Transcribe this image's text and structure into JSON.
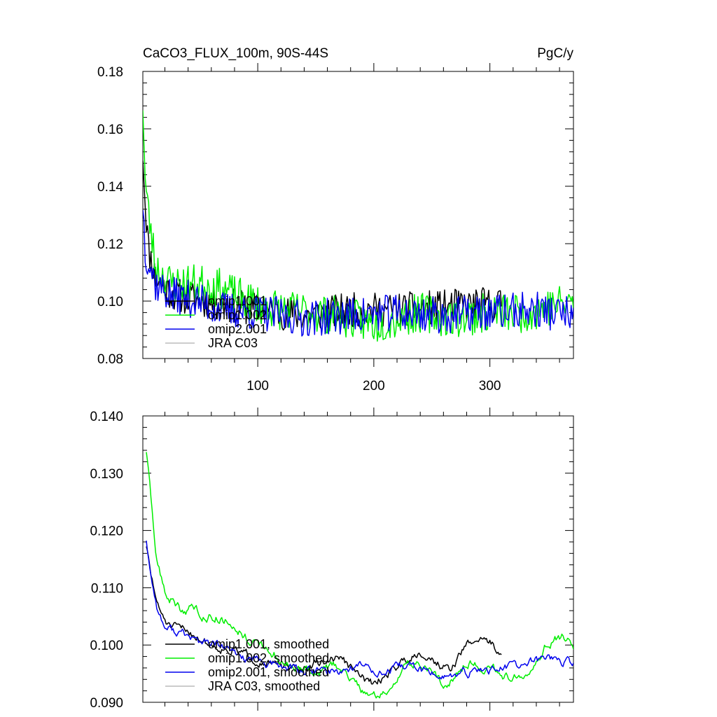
{
  "chart_data": [
    {
      "type": "line",
      "title": "CaCO3_FLUX_100m, 90S-44S",
      "units": "PgC/y",
      "ylim": [
        0.08,
        0.18
      ],
      "xlim": [
        1,
        372
      ],
      "y_ticks": [
        "0.08",
        "0.10",
        "0.12",
        "0.14",
        "0.16",
        "0.18"
      ],
      "x_ticks": [
        "100",
        "200",
        "300"
      ],
      "legend_position": "lower-left",
      "grid": false,
      "series": [
        {
          "name": "omip1.001",
          "color": "#000000",
          "end": 310,
          "anchors": [
            [
              1,
              0.152
            ],
            [
              3,
              0.135
            ],
            [
              6,
              0.118
            ],
            [
              12,
              0.108
            ],
            [
              25,
              0.103
            ],
            [
              40,
              0.101
            ],
            [
              70,
              0.099
            ],
            [
              100,
              0.097
            ],
            [
              140,
              0.095
            ],
            [
              180,
              0.097
            ],
            [
              220,
              0.097
            ],
            [
              260,
              0.098
            ],
            [
              300,
              0.099
            ],
            [
              310,
              0.099
            ]
          ],
          "noise": 0.006,
          "seed": 11
        },
        {
          "name": "omip1.002",
          "color": "#00ee00",
          "end": 372,
          "anchors": [
            [
              1,
              0.17
            ],
            [
              3,
              0.142
            ],
            [
              6,
              0.13
            ],
            [
              12,
              0.112
            ],
            [
              25,
              0.106
            ],
            [
              40,
              0.106
            ],
            [
              55,
              0.106
            ],
            [
              70,
              0.104
            ],
            [
              90,
              0.1
            ],
            [
              120,
              0.097
            ],
            [
              150,
              0.096
            ],
            [
              180,
              0.094
            ],
            [
              200,
              0.092
            ],
            [
              240,
              0.096
            ],
            [
              270,
              0.094
            ],
            [
              300,
              0.096
            ],
            [
              330,
              0.096
            ],
            [
              372,
              0.1
            ]
          ],
          "noise": 0.007,
          "seed": 23
        },
        {
          "name": "omip2.001",
          "color": "#0000ee",
          "end": 372,
          "anchors": [
            [
              1,
              0.135
            ],
            [
              3,
              0.118
            ],
            [
              6,
              0.114
            ],
            [
              12,
              0.106
            ],
            [
              25,
              0.102
            ],
            [
              40,
              0.101
            ],
            [
              70,
              0.097
            ],
            [
              100,
              0.096
            ],
            [
              140,
              0.094
            ],
            [
              180,
              0.095
            ],
            [
              220,
              0.096
            ],
            [
              260,
              0.095
            ],
            [
              300,
              0.096
            ],
            [
              340,
              0.097
            ],
            [
              372,
              0.095
            ]
          ],
          "noise": 0.0065,
          "seed": 37
        },
        {
          "name": "JRA C03",
          "color": "#bbbbbb",
          "end": 0,
          "anchors": [],
          "noise": 0,
          "seed": 0
        }
      ]
    },
    {
      "type": "line",
      "title": "",
      "ylim": [
        0.09,
        0.14
      ],
      "xlim": [
        1,
        372
      ],
      "y_ticks": [
        "0.090",
        "0.100",
        "0.110",
        "0.120",
        "0.130",
        "0.140"
      ],
      "x_ticks": [],
      "legend_position": "lower-left",
      "grid": false,
      "series": [
        {
          "name": "omip1.001, smoothed",
          "color": "#000000",
          "end": 310,
          "anchors": [
            [
              4,
              0.1175
            ],
            [
              8,
              0.112
            ],
            [
              15,
              0.106
            ],
            [
              25,
              0.103
            ],
            [
              40,
              0.1025
            ],
            [
              60,
              0.1
            ],
            [
              80,
              0.099
            ],
            [
              100,
              0.0975
            ],
            [
              130,
              0.0955
            ],
            [
              150,
              0.0965
            ],
            [
              170,
              0.098
            ],
            [
              185,
              0.095
            ],
            [
              200,
              0.093
            ],
            [
              220,
              0.0965
            ],
            [
              240,
              0.099
            ],
            [
              250,
              0.0975
            ],
            [
              265,
              0.0955
            ],
            [
              280,
              0.1
            ],
            [
              295,
              0.1015
            ],
            [
              310,
              0.0985
            ]
          ],
          "noise": 0.0012,
          "seed": 51
        },
        {
          "name": "omip1.002, smoothed",
          "color": "#00ee00",
          "end": 376,
          "anchors": [
            [
              4,
              0.134
            ],
            [
              8,
              0.125
            ],
            [
              12,
              0.116
            ],
            [
              20,
              0.109
            ],
            [
              35,
              0.106
            ],
            [
              45,
              0.1065
            ],
            [
              55,
              0.105
            ],
            [
              65,
              0.105
            ],
            [
              80,
              0.1035
            ],
            [
              95,
              0.1005
            ],
            [
              110,
              0.099
            ],
            [
              130,
              0.096
            ],
            [
              150,
              0.095
            ],
            [
              170,
              0.0965
            ],
            [
              185,
              0.093
            ],
            [
              200,
              0.091
            ],
            [
              210,
              0.0915
            ],
            [
              225,
              0.096
            ],
            [
              240,
              0.097
            ],
            [
              260,
              0.093
            ],
            [
              280,
              0.097
            ],
            [
              300,
              0.096
            ],
            [
              320,
              0.094
            ],
            [
              335,
              0.0965
            ],
            [
              350,
              0.1005
            ],
            [
              365,
              0.1015
            ],
            [
              376,
              0.098
            ]
          ],
          "noise": 0.0013,
          "seed": 63
        },
        {
          "name": "omip2.001, smoothed",
          "color": "#0000ee",
          "end": 376,
          "anchors": [
            [
              4,
              0.1185
            ],
            [
              8,
              0.112
            ],
            [
              14,
              0.106
            ],
            [
              20,
              0.103
            ],
            [
              35,
              0.102
            ],
            [
              50,
              0.1005
            ],
            [
              65,
              0.1
            ],
            [
              85,
              0.098
            ],
            [
              110,
              0.0965
            ],
            [
              140,
              0.0955
            ],
            [
              170,
              0.0955
            ],
            [
              190,
              0.0965
            ],
            [
              210,
              0.095
            ],
            [
              230,
              0.0965
            ],
            [
              250,
              0.095
            ],
            [
              270,
              0.0945
            ],
            [
              290,
              0.0955
            ],
            [
              310,
              0.096
            ],
            [
              330,
              0.0965
            ],
            [
              350,
              0.098
            ],
            [
              365,
              0.097
            ],
            [
              376,
              0.0965
            ]
          ],
          "noise": 0.0012,
          "seed": 77
        },
        {
          "name": "JRA C03, smoothed",
          "color": "#bbbbbb",
          "end": 0,
          "anchors": [],
          "noise": 0,
          "seed": 0
        }
      ]
    }
  ]
}
